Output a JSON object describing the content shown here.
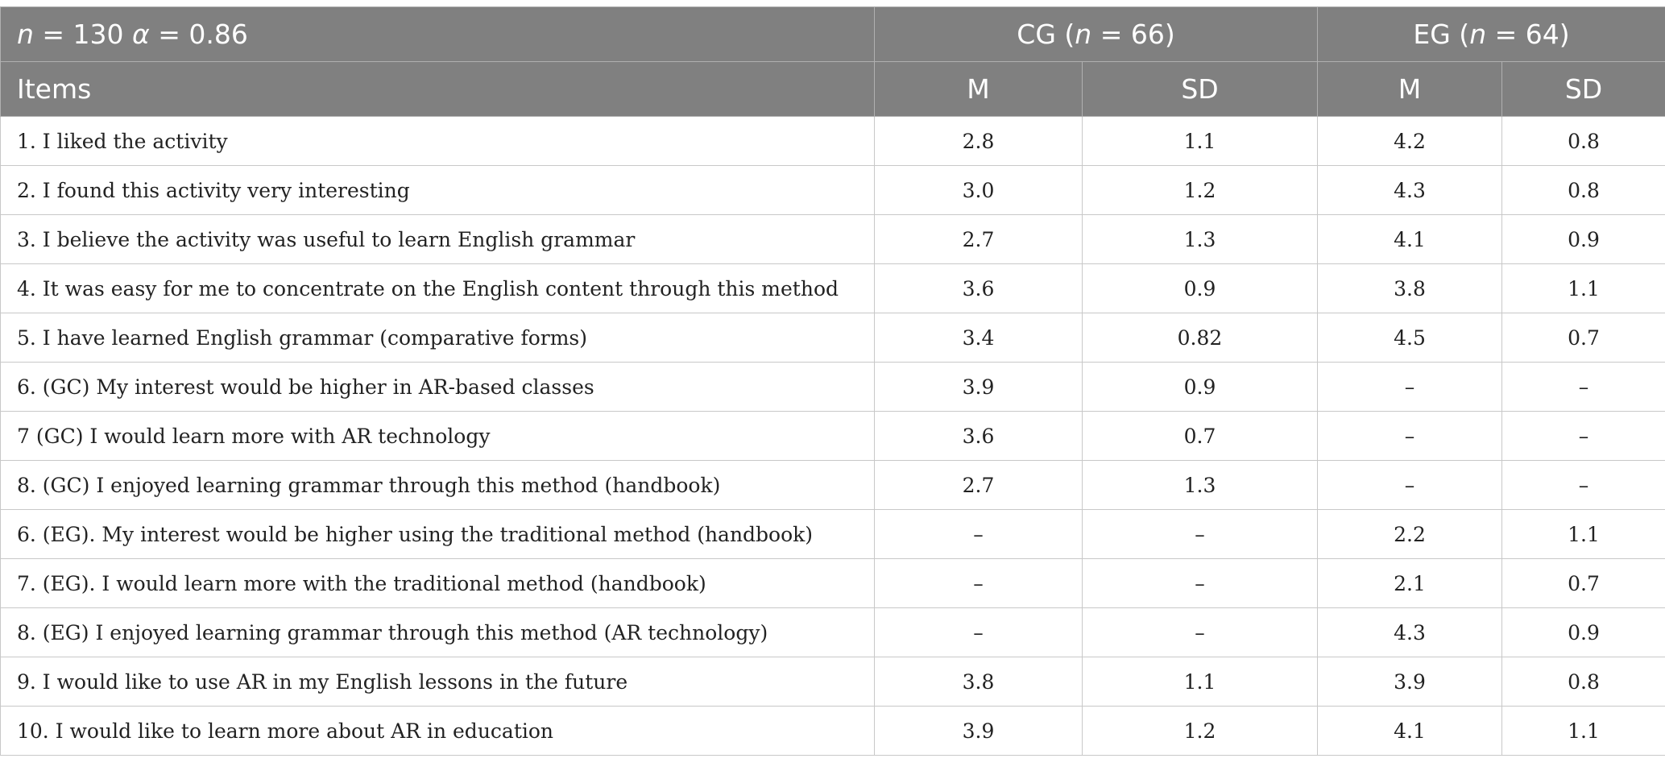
{
  "header": {
    "title_n_symbol": "n",
    "title_n_value": " = 130 ",
    "title_alpha_symbol": "α",
    "title_alpha_value": " = 0.86",
    "cg_prefix": "CG (",
    "cg_n_symbol": "n",
    "cg_suffix": " = 66)",
    "eg_prefix": "EG (",
    "eg_n_symbol": "n",
    "eg_suffix": " = 64)",
    "items_label": "Items",
    "cg_m": "M",
    "cg_sd": "SD",
    "eg_m": "M",
    "eg_sd": "SD"
  },
  "rows": [
    {
      "item": "1. I liked the activity",
      "cg_m": "2.8",
      "cg_sd": "1.1",
      "eg_m": "4.2",
      "eg_sd": "0.8"
    },
    {
      "item": "2. I found this activity very interesting",
      "cg_m": "3.0",
      "cg_sd": "1.2",
      "eg_m": "4.3",
      "eg_sd": "0.8"
    },
    {
      "item": "3. I believe the activity was useful to learn English grammar",
      "cg_m": "2.7",
      "cg_sd": "1.3",
      "eg_m": "4.1",
      "eg_sd": "0.9"
    },
    {
      "item": "4. It was easy for me to concentrate on the English content through this method",
      "cg_m": "3.6",
      "cg_sd": "0.9",
      "eg_m": "3.8",
      "eg_sd": "1.1"
    },
    {
      "item": "5. I have learned English grammar (comparative forms)",
      "cg_m": "3.4",
      "cg_sd": "0.82",
      "eg_m": "4.5",
      "eg_sd": "0.7"
    },
    {
      "item": "6. (GC) My interest would be higher in AR-based classes",
      "cg_m": "3.9",
      "cg_sd": "0.9",
      "eg_m": "–",
      "eg_sd": "–"
    },
    {
      "item": "7 (GC) I would learn more with AR technology",
      "cg_m": "3.6",
      "cg_sd": "0.7",
      "eg_m": "–",
      "eg_sd": "–"
    },
    {
      "item": "8. (GC) I enjoyed learning grammar through this method (handbook)",
      "cg_m": "2.7",
      "cg_sd": "1.3",
      "eg_m": "–",
      "eg_sd": "–"
    },
    {
      "item": "6. (EG). My interest would be higher using the traditional method (handbook)",
      "cg_m": "–",
      "cg_sd": "–",
      "eg_m": "2.2",
      "eg_sd": "1.1"
    },
    {
      "item": "7. (EG). I would learn more with the traditional method (handbook)",
      "cg_m": "–",
      "cg_sd": "–",
      "eg_m": "2.1",
      "eg_sd": "0.7"
    },
    {
      "item": "8. (EG) I enjoyed learning grammar through this method (AR technology)",
      "cg_m": "–",
      "cg_sd": "–",
      "eg_m": "4.3",
      "eg_sd": "0.9"
    },
    {
      "item": "9. I would like to use AR in my English lessons in the future",
      "cg_m": "3.8",
      "cg_sd": "1.1",
      "eg_m": "3.9",
      "eg_sd": "0.8"
    },
    {
      "item": "10. I would like to learn more about AR in education",
      "cg_m": "3.9",
      "cg_sd": "1.2",
      "eg_m": "4.1",
      "eg_sd": "1.1"
    }
  ]
}
